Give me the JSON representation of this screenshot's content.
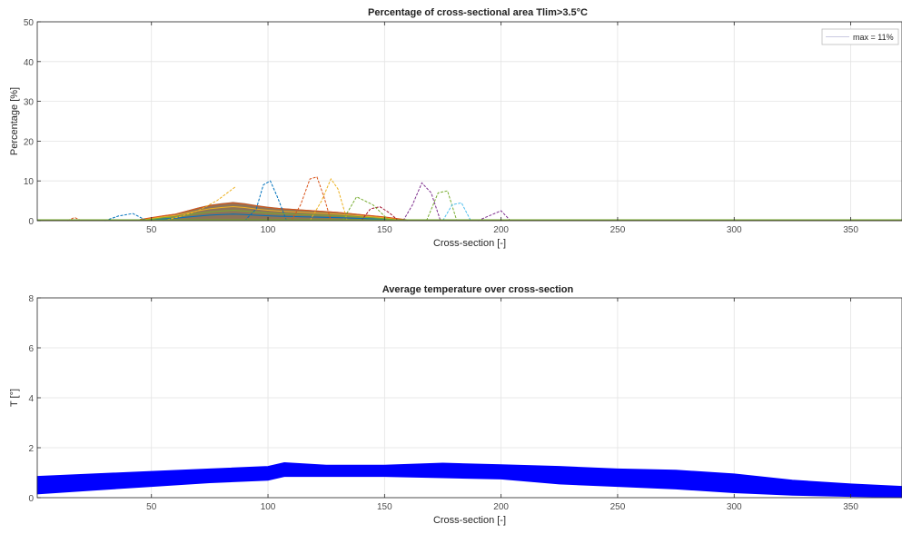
{
  "chart_data": [
    {
      "type": "line",
      "title": "Percentage of cross-sectional area Tlim>3.5°C",
      "xlabel": "Cross-section [-]",
      "ylabel": "Percentage [%]",
      "xlim": [
        1,
        372
      ],
      "ylim": [
        0,
        50
      ],
      "xticks": [
        50,
        100,
        150,
        200,
        250,
        300,
        350
      ],
      "yticks": [
        0,
        10,
        20,
        30,
        40,
        50
      ],
      "grid": true,
      "legend": {
        "location": "top-right",
        "entries": [
          "max = 11%"
        ]
      },
      "colors": [
        "#0072BD",
        "#D95319",
        "#EDB120",
        "#7E2F8E",
        "#77AC30",
        "#4DBEEE",
        "#A2142F"
      ],
      "band": {
        "x": [
          45,
          50,
          55,
          60,
          65,
          70,
          75,
          80,
          85,
          90,
          95,
          100,
          105,
          110,
          115,
          120,
          125,
          130,
          135,
          140,
          145,
          150,
          155,
          160
        ],
        "y": [
          0.3,
          0.8,
          1.3,
          1.7,
          2.5,
          3.3,
          4.0,
          4.4,
          4.7,
          4.4,
          3.9,
          3.5,
          3.2,
          3.0,
          2.8,
          2.6,
          2.4,
          2.2,
          1.9,
          1.6,
          1.3,
          1.0,
          0.6,
          0.2
        ]
      },
      "series": [
        {
          "x": [
            90,
            95,
            98,
            101,
            104,
            108
          ],
          "values": [
            0,
            3,
            9,
            10,
            6,
            0
          ]
        },
        {
          "x": [
            110,
            114,
            118,
            121,
            124,
            127
          ],
          "values": [
            0,
            4,
            10.5,
            11,
            6,
            0
          ]
        },
        {
          "x": [
            118,
            123,
            127,
            130,
            134
          ],
          "values": [
            0,
            5,
            10.5,
            8,
            0
          ]
        },
        {
          "x": [
            158,
            162,
            166,
            170,
            174
          ],
          "values": [
            0,
            4,
            9.5,
            7,
            0
          ]
        },
        {
          "x": [
            168,
            173,
            177,
            181
          ],
          "values": [
            0,
            7,
            7.5,
            0
          ]
        },
        {
          "x": [
            175,
            179,
            183,
            187
          ],
          "values": [
            0,
            4,
            4.5,
            0
          ]
        },
        {
          "x": [
            140,
            144,
            148,
            152,
            156
          ],
          "values": [
            0,
            3,
            3.5,
            2,
            0
          ]
        },
        {
          "x": [
            30,
            36,
            42,
            48
          ],
          "values": [
            0,
            1.2,
            1.8,
            0
          ]
        },
        {
          "x": [
            14,
            17,
            20
          ],
          "values": [
            0,
            0.8,
            0
          ]
        },
        {
          "x": [
            55,
            62,
            70,
            78,
            86
          ],
          "values": [
            0,
            1,
            2.5,
            5,
            8.5
          ]
        },
        {
          "x": [
            190,
            196,
            200,
            204
          ],
          "values": [
            0,
            1.5,
            2.5,
            0
          ]
        },
        {
          "x": [
            132,
            138,
            145,
            152
          ],
          "values": [
            0,
            6,
            4,
            0
          ]
        }
      ],
      "bottom_lines": [
        {
          "color": "#A2142F",
          "x": [
            1,
            372
          ],
          "values": [
            0.1,
            0.1
          ]
        },
        {
          "color": "#77AC30",
          "x": [
            1,
            372
          ],
          "values": [
            0.2,
            0.2
          ]
        }
      ]
    },
    {
      "type": "area",
      "title": "Average temperature over cross-section",
      "xlabel": "Cross-section [-]",
      "ylabel": "T [°]",
      "xlim": [
        1,
        372
      ],
      "ylim": [
        0,
        8
      ],
      "xticks": [
        50,
        100,
        150,
        200,
        250,
        300,
        350
      ],
      "yticks": [
        0,
        2,
        4,
        6,
        8
      ],
      "grid": true,
      "color": "#0000FF",
      "x": [
        1,
        25,
        50,
        75,
        100,
        107,
        125,
        150,
        175,
        200,
        225,
        250,
        275,
        300,
        325,
        350,
        372
      ],
      "upper": [
        0.85,
        0.95,
        1.05,
        1.15,
        1.25,
        1.4,
        1.3,
        1.3,
        1.38,
        1.32,
        1.25,
        1.15,
        1.1,
        0.95,
        0.7,
        0.55,
        0.45
      ],
      "lower": [
        0.15,
        0.3,
        0.45,
        0.6,
        0.7,
        0.85,
        0.85,
        0.85,
        0.8,
        0.75,
        0.55,
        0.45,
        0.35,
        0.2,
        0.1,
        0.05,
        0.02
      ]
    }
  ]
}
